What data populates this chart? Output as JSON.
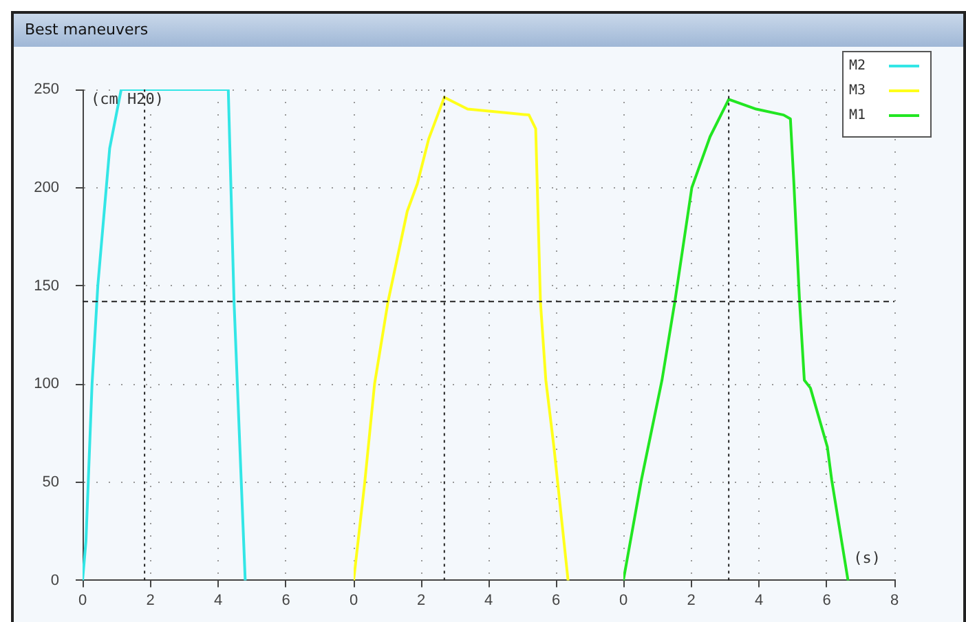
{
  "chart_data": [
    {
      "type": "line",
      "title": "Best maneuvers",
      "ylabel": "(cm H20)",
      "xlim": [
        0,
        8
      ],
      "ylim": [
        0,
        250
      ],
      "xticks": [
        0,
        2,
        4,
        6
      ],
      "yticks": [
        0,
        50,
        100,
        150,
        200,
        250
      ],
      "grid": true,
      "marker": "none",
      "line_style": "solid",
      "ref_lines": [
        {
          "axis": "y",
          "value": 142,
          "line_style": "dashed"
        },
        {
          "axis": "x",
          "value": 1.83,
          "line_style": "dotted"
        }
      ],
      "series": [
        {
          "name": "M2",
          "color": "#33e6e6",
          "x": [
            0,
            0.1,
            0.28,
            0.45,
            0.8,
            1.14,
            4.3,
            4.47,
            4.8
          ],
          "values": [
            0,
            20,
            100,
            150,
            220,
            250,
            250,
            142,
            0
          ]
        }
      ]
    },
    {
      "type": "line",
      "xlim": [
        0,
        8
      ],
      "ylim": [
        0,
        250
      ],
      "xticks": [
        0,
        2,
        4,
        6
      ],
      "tick_labels": "x",
      "grid": true,
      "marker": "none",
      "line_style": "solid",
      "ref_lines": [
        {
          "axis": "y",
          "value": 142,
          "line_style": "dashed"
        },
        {
          "axis": "x",
          "value": 2.69,
          "line_style": "dotted"
        }
      ],
      "series": [
        {
          "name": "M3",
          "color": "#ffff1a",
          "x": [
            0,
            0.33,
            0.62,
            1.02,
            1.59,
            1.89,
            2.23,
            2.69,
            3.38,
            4.6,
            5.2,
            5.4,
            5.54,
            5.7,
            5.94,
            6.36
          ],
          "values": [
            0,
            50,
            100,
            142,
            188,
            202,
            225,
            246,
            240,
            238,
            237,
            230,
            142,
            102,
            68,
            0
          ]
        }
      ]
    },
    {
      "type": "line",
      "xlabel": "(s)",
      "xlim": [
        0,
        8
      ],
      "ylim": [
        0,
        250
      ],
      "xticks": [
        0,
        2,
        4,
        6,
        8
      ],
      "tick_labels": "x",
      "grid": true,
      "legend": "top right",
      "marker": "none",
      "line_style": "solid",
      "ref_lines": [
        {
          "axis": "y",
          "value": 142,
          "line_style": "dashed"
        },
        {
          "axis": "x",
          "value": 3.11,
          "line_style": "dotted"
        }
      ],
      "series": [
        {
          "name": "M1",
          "color": "#22e622",
          "x": [
            0,
            0.53,
            1.14,
            1.52,
            2.02,
            2.56,
            3.11,
            3.92,
            4.73,
            4.93,
            5.03,
            5.2,
            5.34,
            5.52,
            6.02,
            6.15,
            6.63
          ],
          "values": [
            0,
            51,
            102,
            142,
            200,
            226,
            245,
            240,
            237,
            235,
            203,
            142,
            102,
            98,
            68,
            51,
            0
          ]
        }
      ]
    }
  ]
}
